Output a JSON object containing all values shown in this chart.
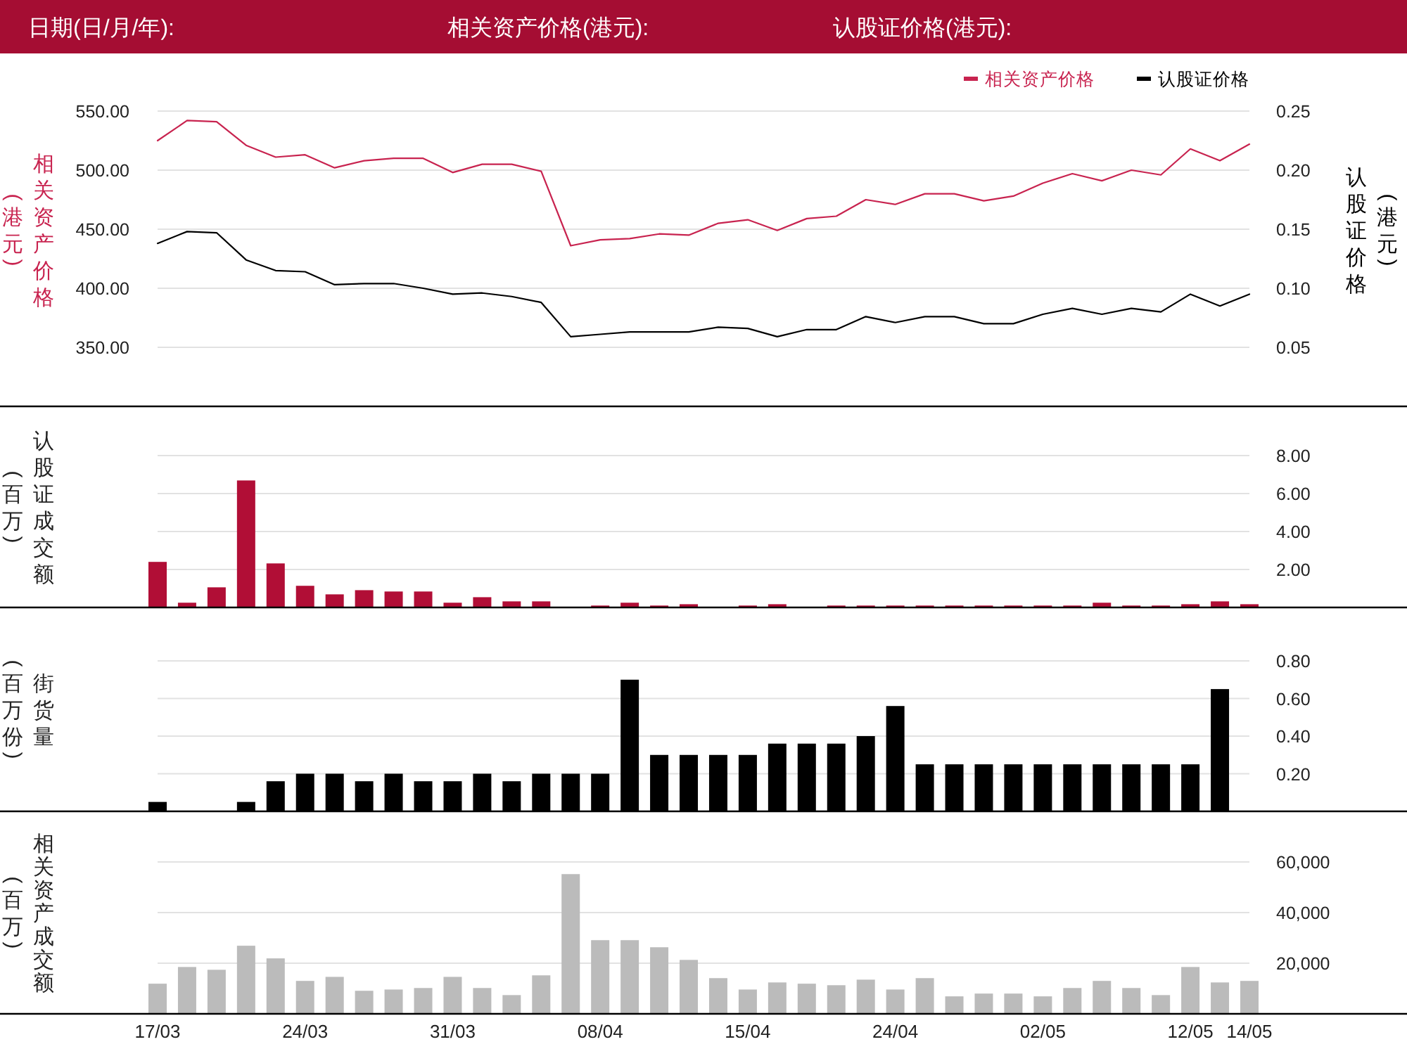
{
  "chart_data": [
    {
      "type": "line",
      "annotations": [
        "日期(日/月/年):",
        "相关资产价格(港元):",
        "认股证价格(港元):"
      ],
      "ylabel": "相关资产价格\n(港元)",
      "y2label": "认股证价格\n(港元)",
      "categories": [
        null,
        null,
        null,
        null,
        null,
        null,
        null,
        null,
        null,
        null,
        null,
        null,
        null,
        null,
        null,
        null,
        null,
        null,
        null,
        null,
        null,
        null,
        null,
        null,
        null,
        null,
        null,
        null,
        null,
        null,
        null,
        null,
        null,
        null,
        null,
        null,
        null,
        null
      ],
      "series": [
        {
          "name": "相关资产价格",
          "color": "#c8234f",
          "values": [
            525,
            542,
            541,
            521,
            511,
            513,
            502,
            508,
            510,
            510,
            498,
            505,
            505,
            499,
            436,
            441,
            442,
            446,
            445,
            455,
            458,
            449,
            459,
            461,
            475,
            471,
            480,
            480,
            474,
            478,
            489,
            497,
            491,
            500,
            496,
            518,
            508,
            522
          ]
        },
        {
          "name": "认股证价格",
          "color": "#000000",
          "axis": "y2",
          "values": [
            0.138,
            0.148,
            0.147,
            0.124,
            0.115,
            0.114,
            0.103,
            0.104,
            0.104,
            0.1,
            0.095,
            0.096,
            0.093,
            0.088,
            0.059,
            0.061,
            0.063,
            0.063,
            0.063,
            0.067,
            0.066,
            0.059,
            0.065,
            0.065,
            0.076,
            0.071,
            0.076,
            0.076,
            0.07,
            0.07,
            0.078,
            0.083,
            0.078,
            0.083,
            0.08,
            0.095,
            0.085,
            0.095
          ]
        }
      ],
      "ylim": [
        300,
        550
      ],
      "yticks": [
        {
          "value": 350,
          "label": "350.00"
        },
        {
          "value": 400,
          "label": "400.00"
        },
        {
          "value": 450,
          "label": "450.00"
        },
        {
          "value": 500,
          "label": "500.00"
        },
        {
          "value": 550,
          "label": "550.00"
        }
      ],
      "y2lim": [
        0,
        0.25
      ],
      "y2ticks": [
        0.05,
        {
          "value": 0.1,
          "label": "0.10"
        },
        0.15,
        {
          "value": 0.2,
          "label": "0.20"
        },
        0.25
      ],
      "grid": "y",
      "legend": "top right",
      "tick_labels": "y"
    },
    {
      "type": "bar",
      "ylabel": "认股证成交额\n(百万)",
      "categories": [
        null,
        null,
        null,
        null,
        null,
        null,
        null,
        null,
        null,
        null,
        null,
        null,
        null,
        null,
        null,
        null,
        null,
        null,
        null,
        null,
        null,
        null,
        null,
        null,
        null,
        null,
        null,
        null,
        null,
        null,
        null,
        null,
        null,
        null,
        null,
        null,
        null,
        null
      ],
      "values": [
        2.4,
        0.25,
        1.06,
        6.69,
        2.32,
        1.14,
        0.69,
        0.91,
        0.84,
        0.84,
        0.25,
        0.54,
        0.32,
        0.32,
        null,
        0.1,
        0.25,
        0.1,
        0.17,
        null,
        0.1,
        0.17,
        null,
        0.1,
        0.1,
        0.1,
        0.1,
        0.1,
        0.1,
        0.1,
        0.1,
        0.1,
        0.25,
        0.1,
        0.1,
        0.17,
        0.32,
        0.17
      ],
      "color": "#b10e36",
      "ylim": [
        0,
        8
      ],
      "yticks": [
        {
          "value": 2,
          "label": "2.00"
        },
        {
          "value": 4,
          "label": "4.00"
        },
        {
          "value": 6,
          "label": "6.00"
        },
        {
          "value": 8,
          "label": "8.00"
        }
      ],
      "grid": "y",
      "tick_labels": "y"
    },
    {
      "type": "bar",
      "ylabel": "街货量\n(百万份)",
      "categories": [
        null,
        null,
        null,
        null,
        null,
        null,
        null,
        null,
        null,
        null,
        null,
        null,
        null,
        null,
        null,
        null,
        null,
        null,
        null,
        null,
        null,
        null,
        null,
        null,
        null,
        null,
        null,
        null,
        null,
        null,
        null,
        null,
        null,
        null,
        null,
        null,
        null,
        null
      ],
      "values": [
        0.05,
        null,
        null,
        0.05,
        0.16,
        0.2,
        0.2,
        0.16,
        0.2,
        0.16,
        0.16,
        0.2,
        0.16,
        0.2,
        0.2,
        0.2,
        0.7,
        0.3,
        0.3,
        0.3,
        0.3,
        0.36,
        0.36,
        0.36,
        0.4,
        0.56,
        0.25,
        0.25,
        0.25,
        0.25,
        0.25,
        0.25,
        0.25,
        0.25,
        0.25,
        0.25,
        0.65,
        null
      ],
      "color": "#000000",
      "ylim": [
        0,
        0.8
      ],
      "yticks": [
        {
          "value": 0.2,
          "label": "0.20"
        },
        {
          "value": 0.4,
          "label": "0.40"
        },
        {
          "value": 0.6,
          "label": "0.60"
        },
        {
          "value": 0.8,
          "label": "0.80"
        }
      ],
      "grid": "y",
      "tick_labels": "y"
    },
    {
      "type": "bar",
      "ylabel": "相关资产成交额\n(百万)",
      "categories": [
        "17/03",
        null,
        null,
        null,
        null,
        "24/03",
        null,
        null,
        null,
        null,
        "31/03",
        null,
        null,
        null,
        null,
        "08/04",
        null,
        null,
        null,
        null,
        "15/04",
        null,
        null,
        null,
        null,
        "24/04",
        null,
        null,
        null,
        null,
        "02/05",
        null,
        null,
        null,
        null,
        "12/05",
        null,
        "14/05"
      ],
      "values": [
        11900,
        18500,
        17400,
        26900,
        21900,
        13000,
        14600,
        9100,
        9600,
        10200,
        14600,
        10200,
        7400,
        15200,
        55200,
        29100,
        29100,
        26300,
        21300,
        14100,
        9600,
        12400,
        11900,
        11300,
        13500,
        9600,
        14100,
        6900,
        8000,
        8000,
        6900,
        10200,
        13000,
        10200,
        7400,
        18500,
        12400,
        13000
      ],
      "color": "#bbbbbb",
      "ylim": [
        0,
        60000
      ],
      "yticks": [
        {
          "value": 20000,
          "label": "20,000"
        },
        {
          "value": 40000,
          "label": "40,000"
        },
        {
          "value": 60000,
          "label": "60,000"
        }
      ],
      "grid": "y"
    }
  ]
}
